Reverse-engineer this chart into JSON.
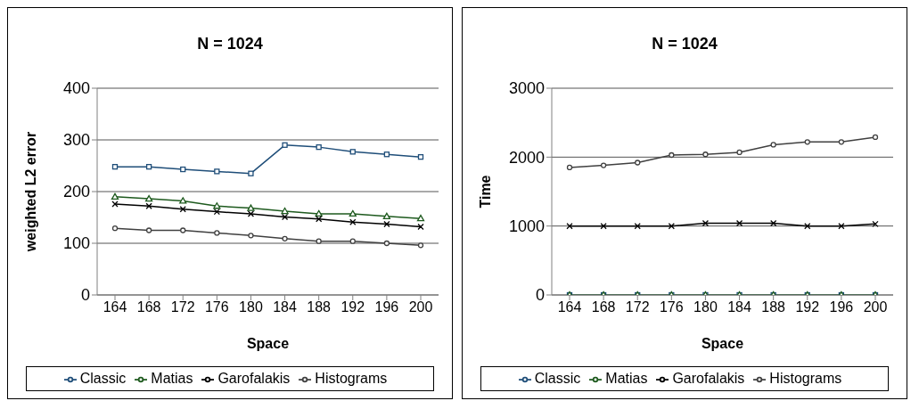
{
  "chart_data": [
    {
      "type": "line",
      "title": "N = 1024",
      "xlabel": "Space",
      "ylabel": "weighted L2 error",
      "categories": [
        "164",
        "168",
        "172",
        "176",
        "180",
        "184",
        "188",
        "192",
        "196",
        "200"
      ],
      "ylim": [
        0,
        400
      ],
      "yticks": [
        0,
        100,
        200,
        300,
        400
      ],
      "grid": "y",
      "legend": "bottom",
      "series": [
        {
          "name": "Classic",
          "color": "#1f4e79",
          "marker": "square",
          "values": [
            248,
            248,
            243,
            239,
            235,
            290,
            286,
            277,
            272,
            267
          ]
        },
        {
          "name": "Matias",
          "color": "#1e5a1e",
          "marker": "triangle",
          "values": [
            190,
            186,
            182,
            172,
            168,
            162,
            157,
            157,
            152,
            148
          ]
        },
        {
          "name": "Garofalakis",
          "color": "#000000",
          "marker": "cross",
          "values": [
            176,
            172,
            166,
            161,
            157,
            151,
            147,
            141,
            137,
            132
          ]
        },
        {
          "name": "Histograms",
          "color": "#404040",
          "marker": "circle",
          "values": [
            129,
            125,
            125,
            120,
            115,
            109,
            104,
            104,
            100,
            96
          ]
        }
      ]
    },
    {
      "type": "line",
      "title": "N = 1024",
      "xlabel": "Space",
      "ylabel": "Time",
      "categories": [
        "164",
        "168",
        "172",
        "176",
        "180",
        "184",
        "188",
        "192",
        "196",
        "200"
      ],
      "ylim": [
        0,
        3000
      ],
      "yticks": [
        0,
        1000,
        2000,
        3000
      ],
      "grid": "y",
      "legend": "bottom",
      "series": [
        {
          "name": "Classic",
          "color": "#1f4e79",
          "marker": "square",
          "values": [
            0,
            0,
            0,
            0,
            0,
            0,
            0,
            0,
            0,
            0
          ]
        },
        {
          "name": "Matias",
          "color": "#1e5a1e",
          "marker": "triangle",
          "values": [
            0,
            0,
            0,
            0,
            0,
            0,
            0,
            0,
            0,
            0
          ]
        },
        {
          "name": "Garofalakis",
          "color": "#000000",
          "marker": "cross",
          "values": [
            1000,
            1000,
            1000,
            1000,
            1040,
            1040,
            1040,
            1000,
            1000,
            1030
          ]
        },
        {
          "name": "Histograms",
          "color": "#404040",
          "marker": "circle",
          "values": [
            1850,
            1880,
            1920,
            2030,
            2040,
            2070,
            2180,
            2220,
            2220,
            2290
          ]
        }
      ]
    }
  ]
}
